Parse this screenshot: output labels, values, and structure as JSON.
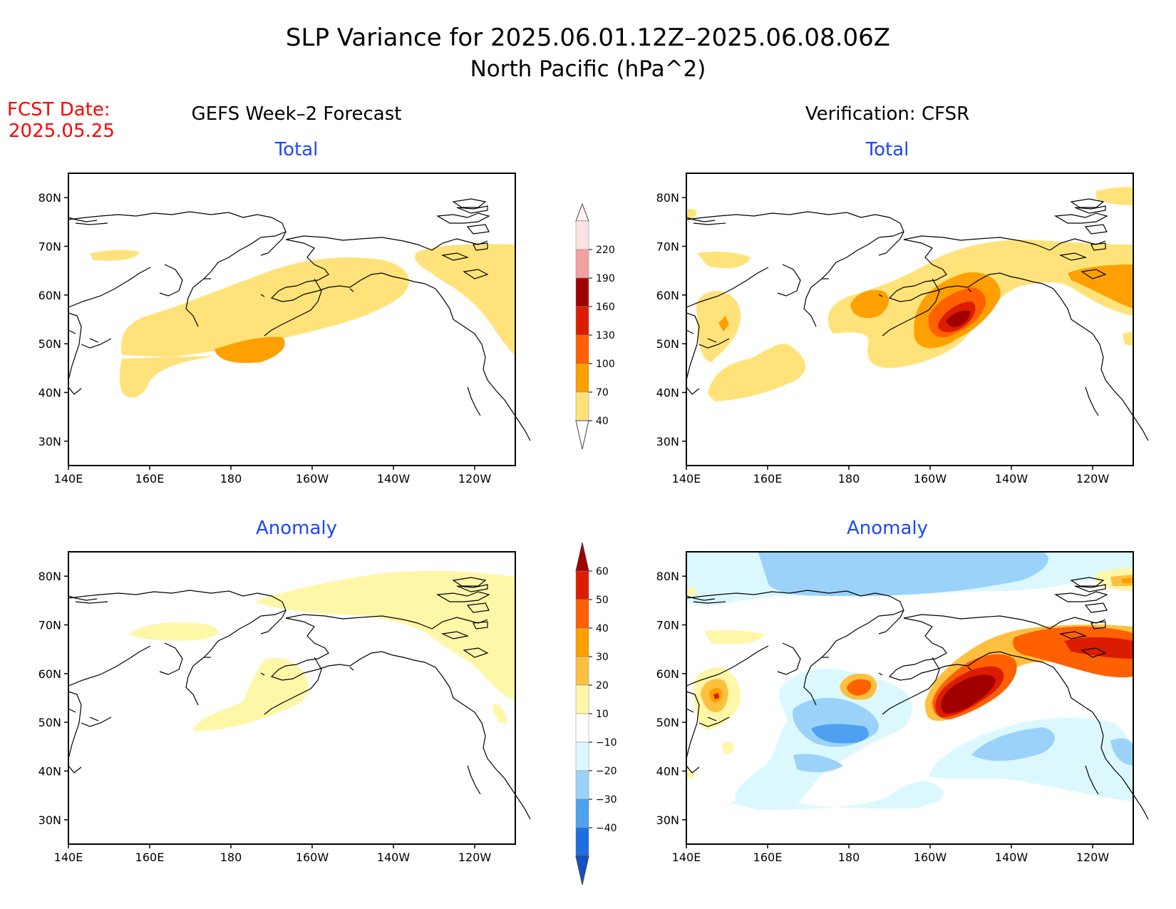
{
  "title": {
    "line1": "SLP Variance for 2025.06.01.12Z–2025.06.08.06Z",
    "line2": "North Pacific (hPa^2)"
  },
  "fcst": {
    "line1": "FCST Date:",
    "line2": "2025.05.25"
  },
  "columns": {
    "left": "GEFS Week–2 Forecast",
    "right": "Verification: CFSR"
  },
  "panels": [
    {
      "id": "forecast-total",
      "subtitle": "Total"
    },
    {
      "id": "verif-total",
      "subtitle": "Total"
    },
    {
      "id": "forecast-anomaly",
      "subtitle": "Anomaly"
    },
    {
      "id": "verif-anomaly",
      "subtitle": "Anomaly"
    }
  ],
  "axes": {
    "lat_labels": [
      "80N",
      "70N",
      "60N",
      "50N",
      "40N",
      "30N"
    ],
    "lon_labels": [
      "140E",
      "160E",
      "180",
      "160W",
      "140W",
      "120W"
    ],
    "lat_range": [
      25,
      85
    ],
    "lon_range": [
      140,
      250
    ]
  },
  "total_colorbar": {
    "labels": [
      "220",
      "190",
      "160",
      "130",
      "100",
      "70",
      "40"
    ],
    "colors": [
      "#fbe3e3",
      "#f4a0a0",
      "#a00000",
      "#dc1c00",
      "#ff6000",
      "#ffa000",
      "#ffe37a"
    ]
  },
  "anomaly_colorbar": {
    "labels": [
      "60",
      "50",
      "40",
      "30",
      "20",
      "10",
      "−10",
      "−20",
      "−30",
      "−40"
    ],
    "colors": [
      "#a00000",
      "#dc1c00",
      "#ff6000",
      "#ffa000",
      "#ffc040",
      "#fff7a8",
      "#ffffff",
      "#dcf8ff",
      "#9ad2fa",
      "#4ea0f0",
      "#1e6ee0",
      "#1450c8"
    ]
  },
  "colors": {
    "title": "#000000",
    "fcst": "#ff0000",
    "subtitle": "#1e46ff",
    "coast": "#000000"
  }
}
